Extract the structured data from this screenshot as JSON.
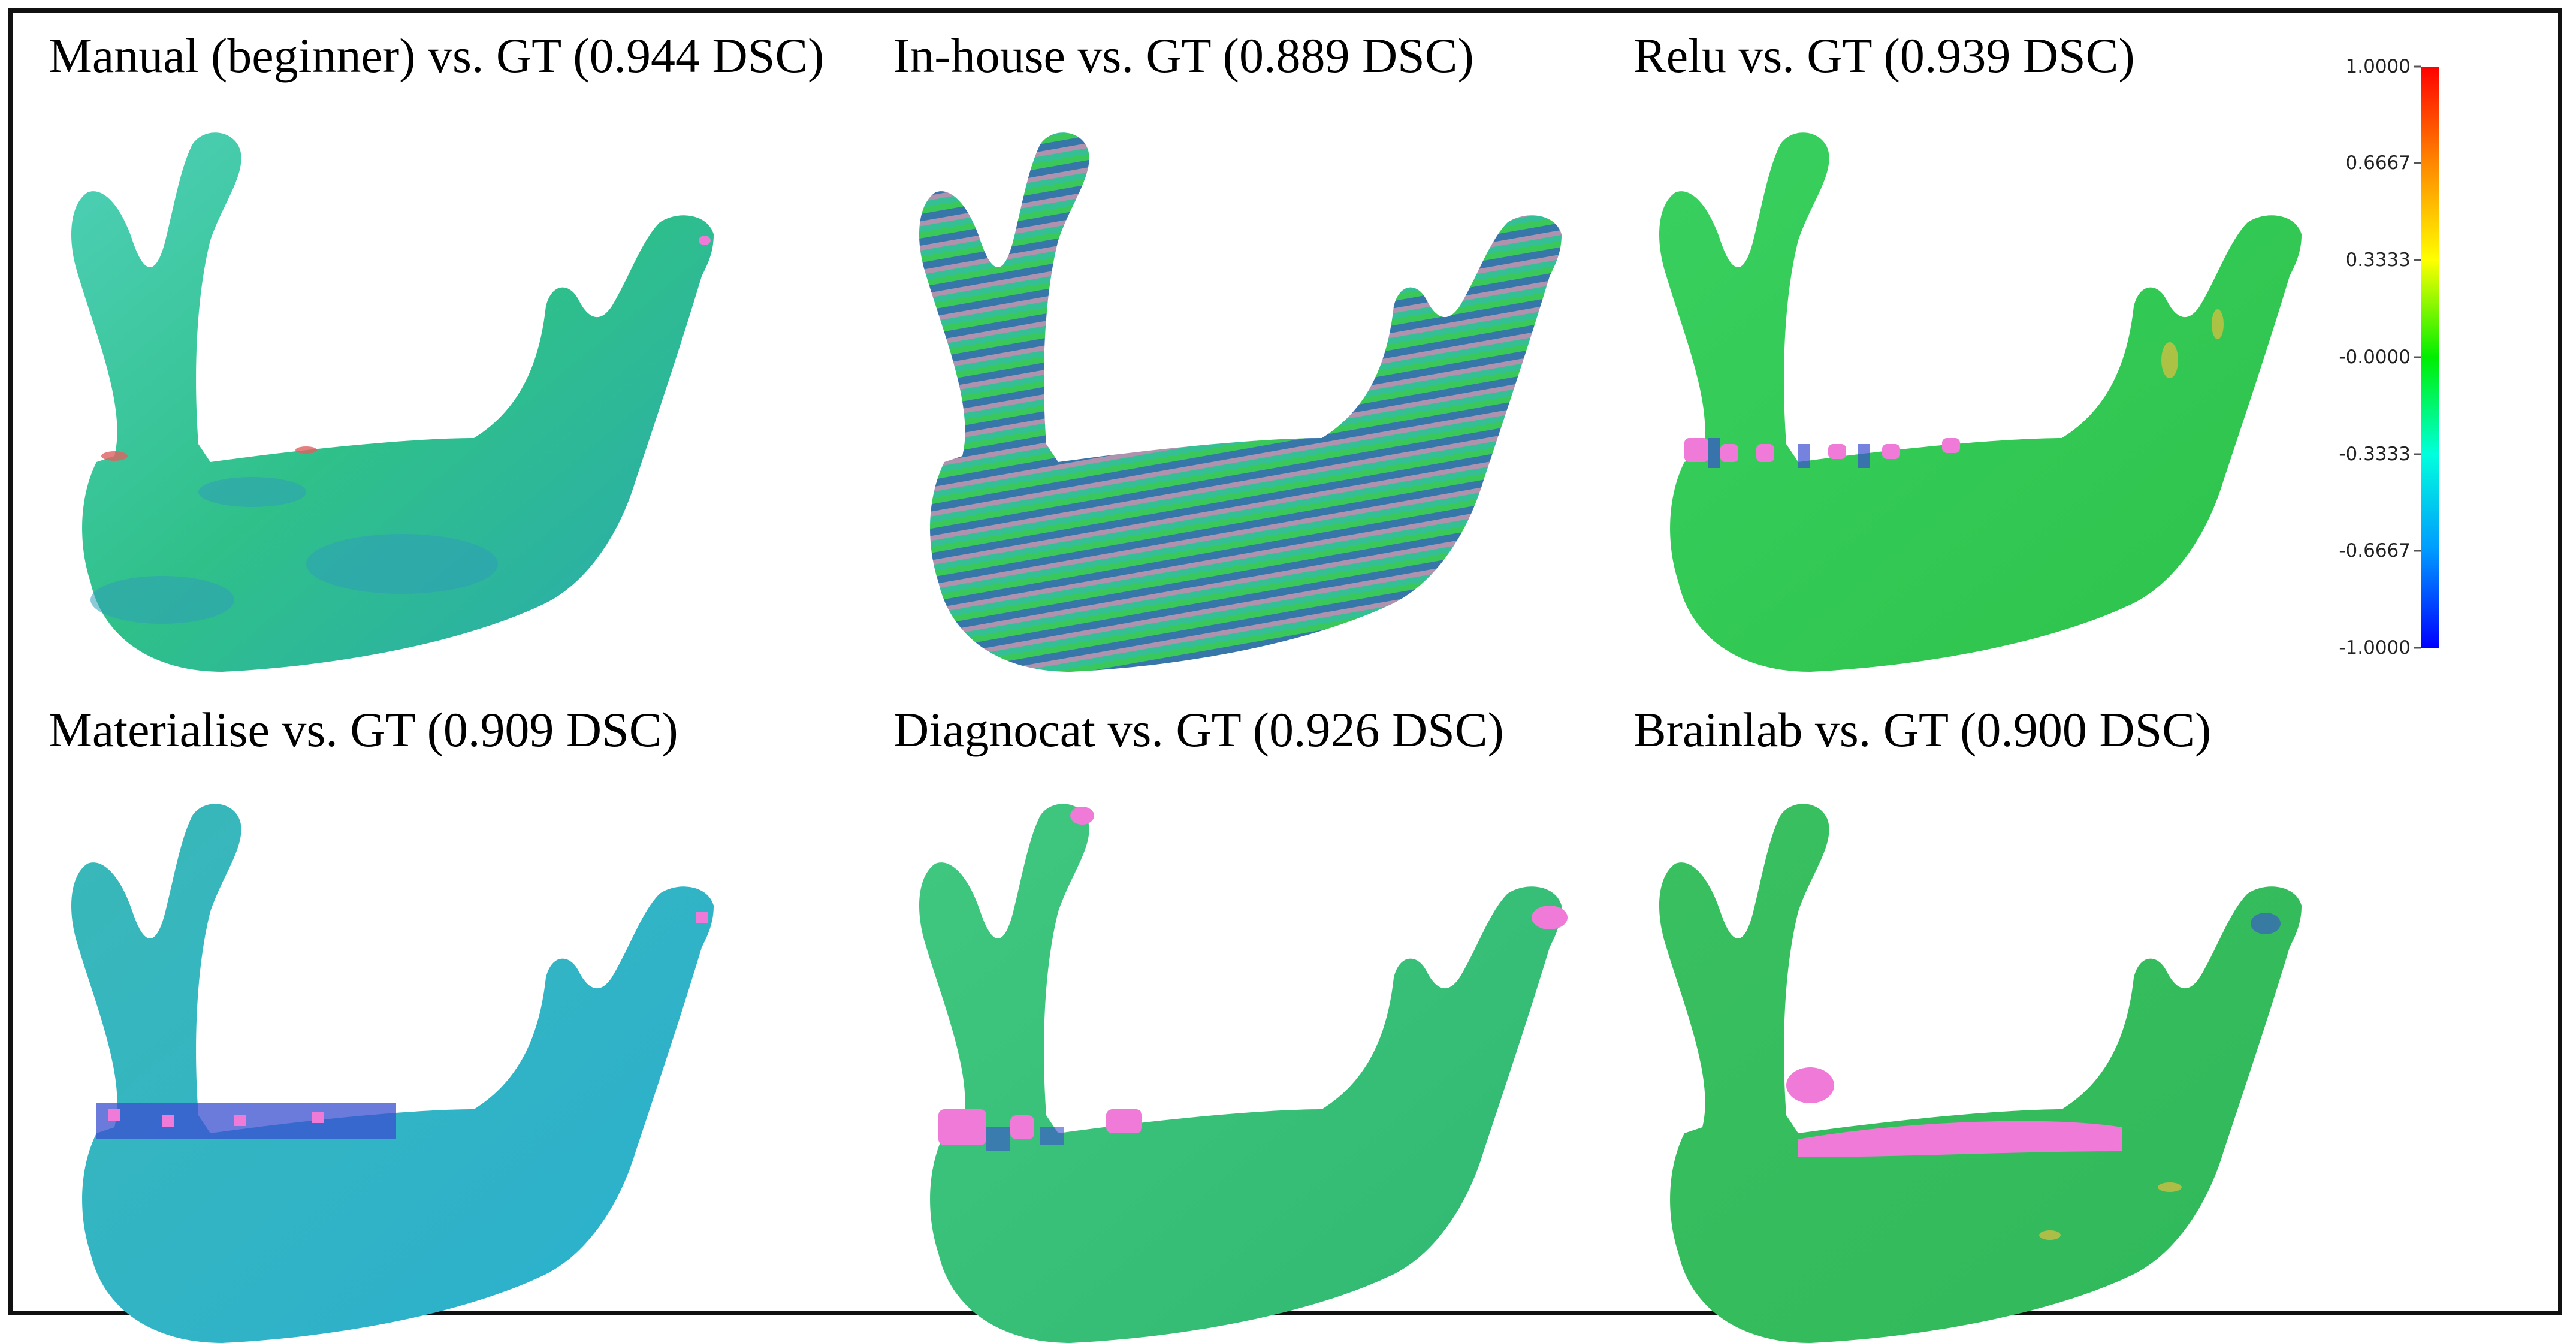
{
  "panels": [
    {
      "title": "Manual (beginner) vs. GT (0.944 DSC)",
      "method": "Manual (beginner)",
      "dsc": 0.944
    },
    {
      "title": "In-house vs. GT (0.889 DSC)",
      "method": "In-house",
      "dsc": 0.889
    },
    {
      "title": "Relu vs. GT (0.939 DSC)",
      "method": "Relu",
      "dsc": 0.939
    },
    {
      "title": "Materialise vs. GT (0.909 DSC)",
      "method": "Materialise",
      "dsc": 0.909
    },
    {
      "title": "Diagnocat vs. GT (0.926 DSC)",
      "method": "Diagnocat",
      "dsc": 0.926
    },
    {
      "title": "Brainlab vs. GT (0.900 DSC)",
      "method": "Brainlab",
      "dsc": 0.9
    }
  ],
  "colorbar": {
    "ticks": [
      "1.0000",
      "0.6667",
      "0.3333",
      "-0.0000",
      "-0.3333",
      "-0.6667",
      "-1.0000"
    ],
    "min": -1.0,
    "max": 1.0,
    "colors": [
      "#ff0000",
      "#ff8800",
      "#ffff00",
      "#00ee00",
      "#00ffdd",
      "#0099ff",
      "#0000ff"
    ]
  },
  "palette": {
    "outlier": "#f07ad8",
    "bone_cyan": "#33c2a8",
    "bone_green": "#2fc95a",
    "bone_teal": "#2aa6b8"
  }
}
